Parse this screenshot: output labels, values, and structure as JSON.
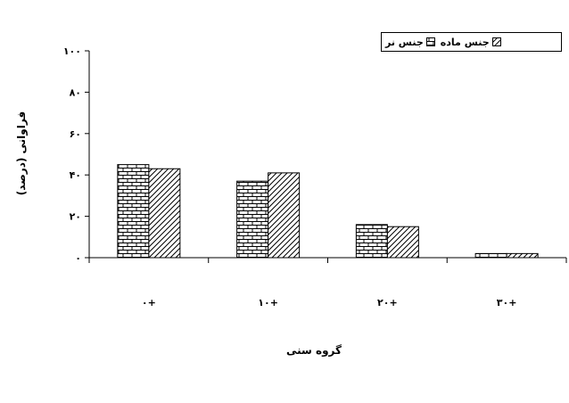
{
  "chart_data": {
    "type": "bar",
    "categories": [
      "۰+",
      "۱۰+",
      "۲۰+",
      "۳۰+"
    ],
    "series": [
      {
        "name": "جنس نر",
        "values": [
          45,
          37,
          16,
          2
        ],
        "pattern": "brick"
      },
      {
        "name": "جنس ماده",
        "values": [
          43,
          41,
          15,
          2
        ],
        "pattern": "diagonal"
      }
    ],
    "ylim": [
      0,
      100
    ],
    "yticks": [
      0,
      20,
      40,
      60,
      80,
      100
    ],
    "ytick_labels": [
      "۰",
      "۲۰",
      "۴۰",
      "۶۰",
      "۸۰",
      "۱۰۰"
    ],
    "xlabel": "گروه سنی",
    "ylabel": "فراوانی (درصد)",
    "legend_position": "top-right",
    "grid": false,
    "colors": {
      "fill": "#ffffff",
      "stroke": "#000000"
    }
  }
}
